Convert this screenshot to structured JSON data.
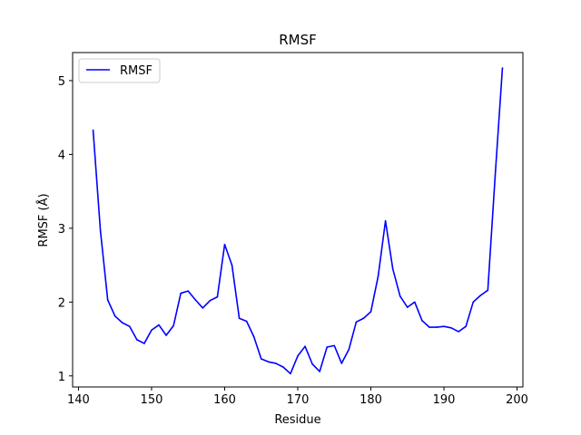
{
  "chart_data": {
    "type": "line",
    "title": "RMSF",
    "xlabel": "Residue",
    "ylabel": "RMSF (Å)",
    "xlim": [
      139.2,
      200.8
    ],
    "ylim": [
      0.85,
      5.38
    ],
    "xticks": [
      140,
      150,
      160,
      170,
      180,
      190,
      200
    ],
    "yticks": [
      1,
      2,
      3,
      4,
      5
    ],
    "grid": false,
    "legend": "upper-left",
    "series": [
      {
        "name": "RMSF",
        "color": "#0000ff",
        "x": [
          142,
          143,
          144,
          145,
          146,
          147,
          148,
          149,
          150,
          151,
          152,
          153,
          154,
          155,
          156,
          157,
          158,
          159,
          160,
          161,
          162,
          163,
          164,
          165,
          166,
          167,
          168,
          169,
          170,
          171,
          172,
          173,
          174,
          175,
          176,
          177,
          178,
          179,
          180,
          181,
          182,
          183,
          184,
          185,
          186,
          187,
          188,
          189,
          190,
          191,
          192,
          193,
          194,
          195,
          196,
          197,
          198
        ],
        "y": [
          4.33,
          2.97,
          2.03,
          1.81,
          1.72,
          1.67,
          1.49,
          1.44,
          1.62,
          1.69,
          1.55,
          1.68,
          2.12,
          2.15,
          2.03,
          1.92,
          2.02,
          2.07,
          2.78,
          2.5,
          1.78,
          1.74,
          1.53,
          1.23,
          1.19,
          1.17,
          1.12,
          1.03,
          1.27,
          1.4,
          1.16,
          1.06,
          1.39,
          1.41,
          1.17,
          1.36,
          1.73,
          1.78,
          1.87,
          2.35,
          3.1,
          2.45,
          2.08,
          1.93,
          2.0,
          1.75,
          1.66,
          1.66,
          1.67,
          1.65,
          1.6,
          1.67,
          2.0,
          2.09,
          2.16,
          3.7,
          5.17
        ]
      }
    ]
  }
}
